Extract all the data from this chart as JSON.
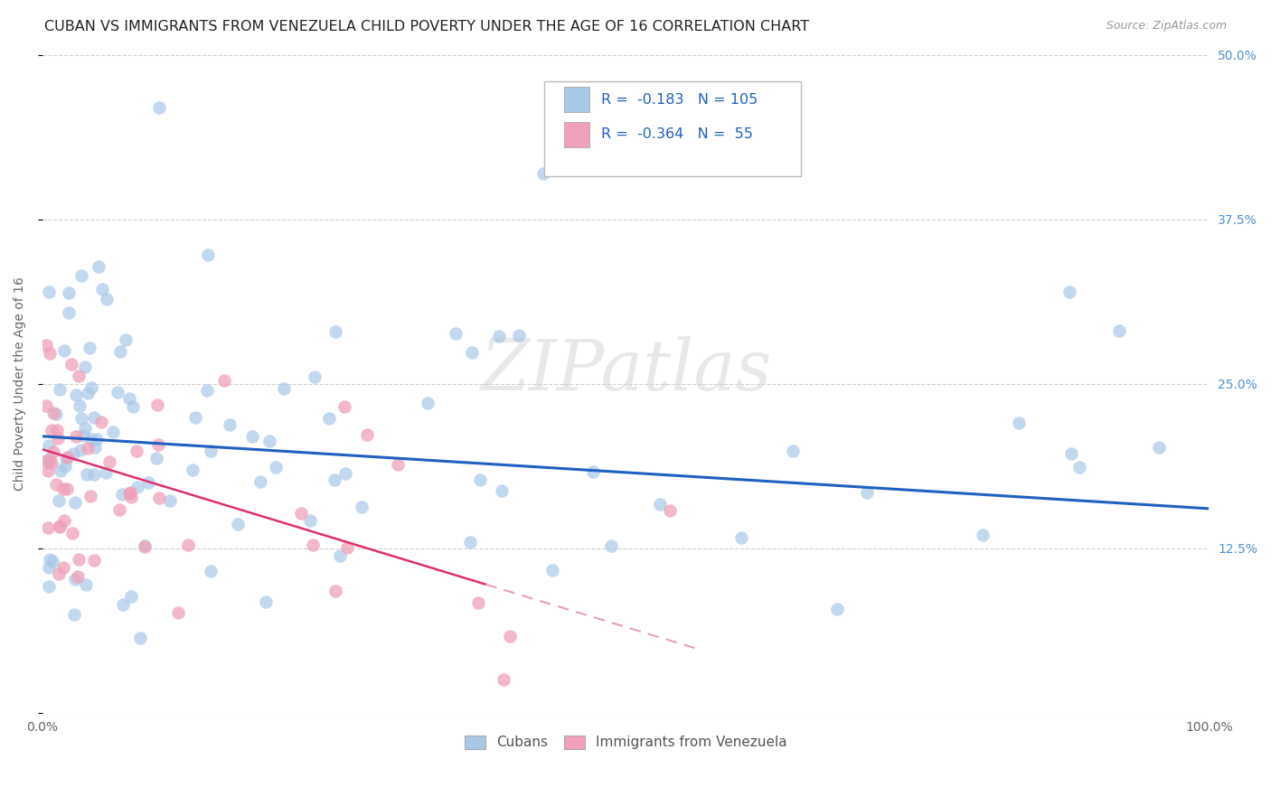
{
  "title": "CUBAN VS IMMIGRANTS FROM VENEZUELA CHILD POVERTY UNDER THE AGE OF 16 CORRELATION CHART",
  "source": "Source: ZipAtlas.com",
  "ylabel": "Child Poverty Under the Age of 16",
  "xlim": [
    0,
    1.0
  ],
  "ylim": [
    0,
    0.5
  ],
  "yticks": [
    0,
    0.125,
    0.25,
    0.375,
    0.5
  ],
  "ytick_labels": [
    "",
    "12.5%",
    "25.0%",
    "37.5%",
    "50.0%"
  ],
  "background_color": "#ffffff",
  "grid_color": "#d0d0d0",
  "blue_color": "#A8C8E8",
  "pink_color": "#F0A0B8",
  "blue_line_color": "#2060C0",
  "pink_line_color": "#E03070",
  "pink_line_dashed_color": "#E8A0B8",
  "R_cuban": -0.183,
  "N_cuban": 105,
  "R_venezuela": -0.364,
  "N_venezuela": 55,
  "title_fontsize": 11.5,
  "axis_label_fontsize": 10,
  "tick_fontsize": 10,
  "right_tick_color": "#5090D0",
  "watermark": "ZIPatlas"
}
